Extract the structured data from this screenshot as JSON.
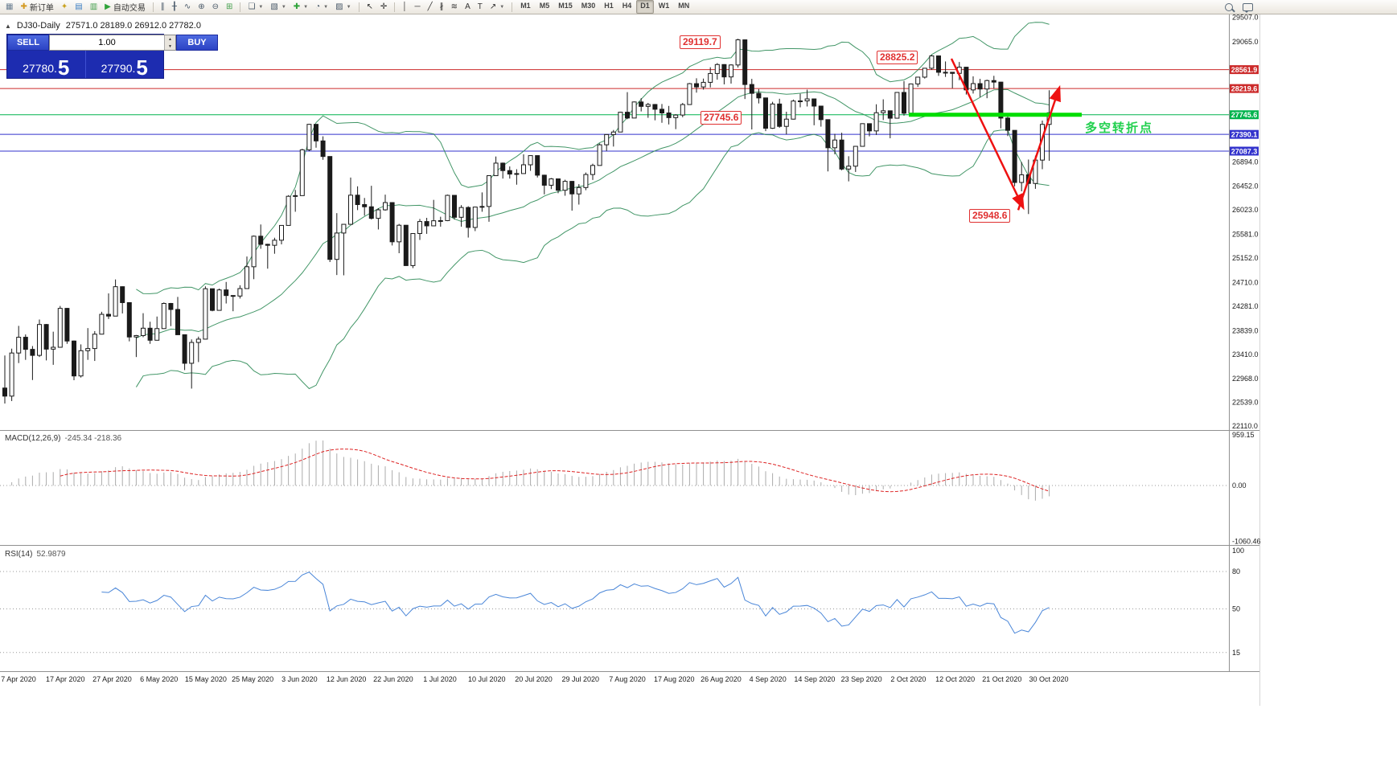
{
  "toolbar": {
    "items": [
      {
        "type": "btn",
        "name": "chart-window-icon",
        "glyph": "▦",
        "color": "#6b7f93"
      },
      {
        "type": "txtbtn",
        "name": "new-order-button",
        "icon": "new-order-icon",
        "glyph": "✚",
        "color": "#d49a22",
        "label": "新订单"
      },
      {
        "type": "btn",
        "name": "navigator-star-icon",
        "glyph": "✦",
        "color": "#caa21f"
      },
      {
        "type": "btn",
        "name": "market-watch-icon",
        "glyph": "▤",
        "color": "#3d7fc4"
      },
      {
        "type": "btn",
        "name": "data-window-icon",
        "glyph": "▥",
        "color": "#44a04e"
      },
      {
        "type": "txtbtn",
        "name": "autotrading-button",
        "icon": "autotrading-play-icon",
        "glyph": "▶",
        "color": "#2fa33a",
        "label": "自动交易"
      },
      {
        "type": "sep"
      },
      {
        "type": "btn",
        "name": "bar-chart-icon",
        "glyph": "∥",
        "color": "#4a5a6a"
      },
      {
        "type": "btn",
        "name": "candlestick-chart-icon",
        "glyph": "╂",
        "color": "#4a5a6a"
      },
      {
        "type": "btn",
        "name": "line-chart-icon",
        "glyph": "∿",
        "color": "#4a5a6a"
      },
      {
        "type": "btn",
        "name": "zoom-in-icon",
        "glyph": "⊕",
        "color": "#4a5a6a"
      },
      {
        "type": "btn",
        "name": "zoom-out-icon",
        "glyph": "⊖",
        "color": "#4a5a6a"
      },
      {
        "type": "btn",
        "name": "tile-windows-icon",
        "glyph": "⊞",
        "color": "#44a04e"
      },
      {
        "type": "sep"
      },
      {
        "type": "combo",
        "name": "new-chart-combo",
        "icon": "new-chart-icon",
        "glyph": "❏",
        "color": "#4a5a6a"
      },
      {
        "type": "combo",
        "name": "profiles-combo",
        "icon": "profiles-icon",
        "glyph": "▧",
        "color": "#4a5a6a"
      },
      {
        "type": "combo",
        "name": "indicators-combo",
        "icon": "add-indicator-icon",
        "glyph": "✚",
        "color": "#2fa33a"
      },
      {
        "type": "combo",
        "name": "periods-combo",
        "icon": "clock-icon",
        "glyph": "◔",
        "color": "#4a5a6a"
      },
      {
        "type": "combo",
        "name": "templates-combo",
        "icon": "template-icon",
        "glyph": "▨",
        "color": "#4a5a6a"
      },
      {
        "type": "sep"
      },
      {
        "type": "btn",
        "name": "cursor-icon",
        "glyph": "↖",
        "color": "#333333"
      },
      {
        "type": "btn",
        "name": "crosshair-icon",
        "glyph": "✛",
        "color": "#333333"
      },
      {
        "type": "sep"
      },
      {
        "type": "btn",
        "name": "vertical-line-icon",
        "glyph": "│",
        "color": "#333333"
      },
      {
        "type": "btn",
        "name": "horizontal-line-icon",
        "glyph": "─",
        "color": "#333333"
      },
      {
        "type": "btn",
        "name": "trendline-icon",
        "glyph": "╱",
        "color": "#333333"
      },
      {
        "type": "btn",
        "name": "equidistant-channel-icon",
        "glyph": "∦",
        "color": "#333333"
      },
      {
        "type": "btn",
        "name": "fibonacci-icon",
        "glyph": "≋",
        "color": "#333333"
      },
      {
        "type": "btn",
        "name": "text-icon",
        "glyph": "A",
        "color": "#333333"
      },
      {
        "type": "btn",
        "name": "text-label-icon",
        "glyph": "T",
        "color": "#333333"
      },
      {
        "type": "combo",
        "name": "arrows-combo",
        "icon": "arrow-shape-icon",
        "glyph": "↗",
        "color": "#333333"
      },
      {
        "type": "sep"
      }
    ],
    "timeframes": {
      "options": [
        "M1",
        "M5",
        "M15",
        "M30",
        "H1",
        "H4",
        "D1",
        "W1",
        "MN"
      ],
      "active": "D1"
    },
    "right_icons": [
      {
        "name": "search-icon"
      },
      {
        "name": "chat-icon"
      }
    ]
  },
  "chart": {
    "collapse_glyph": "▲",
    "title": {
      "symbol": "DJ30-Daily",
      "ohlc": "27571.0 28189.0 26912.0 27782.0"
    },
    "one_click": {
      "sell_label": "SELL",
      "buy_label": "BUY",
      "volume": "1.00",
      "sell_price_main": "27780.",
      "sell_price_pip": "5",
      "buy_price_main": "27790.",
      "buy_price_pip": "5"
    }
  },
  "indicator_labels": {
    "macd_name": "MACD(12,26,9)",
    "macd_values": "-245.34 -218.36",
    "rsi_name": "RSI(14)",
    "rsi_value": "52.9879"
  },
  "annotations": {
    "high_sep": "29119.7",
    "high_oct": "28825.2",
    "level_mid": "27745.6",
    "low_oct": "25948.6",
    "pivot_text": "多空转折点"
  },
  "chart_data": {
    "type": "candlestick",
    "symbol": "DJ30",
    "timeframe": "Daily",
    "y_range": [
      22040,
      29560
    ],
    "indicators": {
      "bollinger_period": 20,
      "bollinger_deviation": 2,
      "macd": [
        12,
        26,
        9
      ],
      "rsi_period": 14
    },
    "price_axis": {
      "regular": [
        "29507.0",
        "29065.0",
        "26894.0",
        "26452.0",
        "26023.0",
        "25581.0",
        "25152.0",
        "24710.0",
        "24281.0",
        "23839.0",
        "23410.0",
        "22968.0",
        "22539.0",
        "22110.0"
      ],
      "lines": [
        {
          "label": "28561.9",
          "price": 28561.9,
          "color": "#cc2a2a"
        },
        {
          "label": "28219.6",
          "price": 28219.6,
          "color": "#cc2a2a"
        },
        {
          "label": "27745.6",
          "price": 27745.6,
          "color": "#00b34d"
        },
        {
          "label": "27390.1",
          "price": 27390.1,
          "color": "#3333cc"
        },
        {
          "label": "27087.3",
          "price": 27087.3,
          "color": "#3333cc"
        }
      ]
    },
    "macd_axis": [
      {
        "label": "959.15",
        "value": 959.15
      },
      {
        "label": "0.00",
        "value": 0
      },
      {
        "label": "-1060.46",
        "value": -1060.46
      }
    ],
    "rsi_axis": [
      {
        "label": "100",
        "value": 100
      },
      {
        "label": "80",
        "value": 80
      },
      {
        "label": "50",
        "value": 50
      },
      {
        "label": "15",
        "value": 15
      }
    ],
    "rsi_levels": [
      80,
      50,
      15
    ],
    "x_labels": [
      "7 Apr 2020",
      "17 Apr 2020",
      "27 Apr 2020",
      "6 May 2020",
      "15 May 2020",
      "25 May 2020",
      "3 Jun 2020",
      "12 Jun 2020",
      "22 Jun 2020",
      "1 Jul 2020",
      "10 Jul 2020",
      "20 Jul 2020",
      "29 Jul 2020",
      "7 Aug 2020",
      "17 Aug 2020",
      "26 Aug 2020",
      "4 Sep 2020",
      "14 Sep 2020",
      "23 Sep 2020",
      "2 Oct 2020",
      "12 Oct 2020",
      "21 Oct 2020",
      "30 Oct 2020"
    ],
    "drawings": [
      {
        "type": "trend-arrow",
        "direction": "down",
        "color": "#ee1111",
        "from_price": 28760,
        "to_price": 26070
      },
      {
        "type": "trend-arrow",
        "direction": "up",
        "color": "#ee1111",
        "from_price": 26020,
        "to_price": 28230
      },
      {
        "type": "thick-segment",
        "price": 27745.6,
        "color": "#00dd00",
        "label": "多空转折点"
      }
    ],
    "ohlc": [
      [
        22800,
        23390,
        22520,
        22654
      ],
      [
        22654,
        23513,
        22565,
        23434
      ],
      [
        23434,
        23925,
        23252,
        23719
      ],
      [
        23719,
        23770,
        23310,
        23500
      ],
      [
        23500,
        23560,
        22945,
        23391
      ],
      [
        23391,
        24040,
        23361,
        23950
      ],
      [
        23950,
        23960,
        23300,
        23504
      ],
      [
        23504,
        23820,
        23220,
        23538
      ],
      [
        23538,
        24286,
        23530,
        24242
      ],
      [
        24242,
        24250,
        23600,
        23651
      ],
      [
        23651,
        23660,
        22942,
        23019
      ],
      [
        23019,
        23590,
        22990,
        23476
      ],
      [
        23476,
        23885,
        23310,
        23515
      ],
      [
        23515,
        23830,
        23290,
        23775
      ],
      [
        23775,
        24180,
        23770,
        24134
      ],
      [
        24134,
        24512,
        24050,
        24102
      ],
      [
        24102,
        24765,
        24100,
        24634
      ],
      [
        24634,
        24640,
        24150,
        24346
      ],
      [
        24346,
        24350,
        23645,
        23724
      ],
      [
        23724,
        23760,
        23361,
        23750
      ],
      [
        23750,
        24155,
        23720,
        23883
      ],
      [
        23883,
        24000,
        23600,
        23665
      ],
      [
        23665,
        24094,
        23660,
        23876
      ],
      [
        23876,
        24349,
        23870,
        24331
      ],
      [
        24331,
        24340,
        23920,
        24222
      ],
      [
        24222,
        24450,
        23760,
        23765
      ],
      [
        23765,
        23770,
        23125,
        23248
      ],
      [
        23248,
        23680,
        22790,
        23625
      ],
      [
        23625,
        23730,
        23270,
        23685
      ],
      [
        23685,
        24640,
        23680,
        24597
      ],
      [
        24597,
        24600,
        24190,
        24206
      ],
      [
        24206,
        24600,
        24200,
        24576
      ],
      [
        24576,
        24720,
        24330,
        24474
      ],
      [
        24474,
        24480,
        24190,
        24465
      ],
      [
        24465,
        24660,
        24420,
        24600
      ],
      [
        24600,
        25180,
        24595,
        24995
      ],
      [
        24995,
        25560,
        24770,
        25548
      ],
      [
        25548,
        25760,
        25320,
        25401
      ],
      [
        25401,
        25410,
        24960,
        25383
      ],
      [
        25383,
        25520,
        25230,
        25475
      ],
      [
        25475,
        25750,
        25400,
        25743
      ],
      [
        25743,
        26290,
        25740,
        26270
      ],
      [
        26270,
        26385,
        25990,
        26282
      ],
      [
        26282,
        27130,
        26280,
        27111
      ],
      [
        27111,
        27580,
        27090,
        27572
      ],
      [
        27572,
        27575,
        27150,
        27272
      ],
      [
        27272,
        27355,
        26930,
        26990
      ],
      [
        26990,
        26990,
        25080,
        25128
      ],
      [
        25128,
        25965,
        24845,
        25605
      ],
      [
        25605,
        25760,
        24840,
        25763
      ],
      [
        25763,
        26610,
        25760,
        26290
      ],
      [
        26290,
        26450,
        26020,
        26120
      ],
      [
        26120,
        26240,
        25920,
        26080
      ],
      [
        26080,
        26460,
        25850,
        25871
      ],
      [
        25871,
        26055,
        25670,
        26025
      ],
      [
        26025,
        26300,
        26010,
        26156
      ],
      [
        26156,
        26160,
        25380,
        25446
      ],
      [
        25446,
        25770,
        25240,
        25746
      ],
      [
        25746,
        25750,
        25010,
        25016
      ],
      [
        25016,
        25600,
        24970,
        25596
      ],
      [
        25596,
        25860,
        25480,
        25813
      ],
      [
        25813,
        25880,
        25590,
        25735
      ],
      [
        25735,
        26205,
        25730,
        25827
      ],
      [
        25827,
        25900,
        25720,
        25830
      ],
      [
        25830,
        26300,
        25820,
        26287
      ],
      [
        26287,
        26290,
        25850,
        25890
      ],
      [
        25890,
        26110,
        25720,
        26067
      ],
      [
        26067,
        26090,
        25523,
        25706
      ],
      [
        25706,
        26080,
        25640,
        26075
      ],
      [
        26075,
        26340,
        25990,
        26086
      ],
      [
        26086,
        26650,
        25810,
        26643
      ],
      [
        26643,
        26990,
        26640,
        26870
      ],
      [
        26870,
        26880,
        26590,
        26735
      ],
      [
        26735,
        26810,
        26590,
        26672
      ],
      [
        26672,
        26760,
        26480,
        26681
      ],
      [
        26681,
        27030,
        26680,
        26840
      ],
      [
        26840,
        27010,
        26730,
        27006
      ],
      [
        27006,
        27010,
        26610,
        26652
      ],
      [
        26652,
        26660,
        26305,
        26470
      ],
      [
        26470,
        26600,
        26400,
        26585
      ],
      [
        26585,
        26590,
        26325,
        26379
      ],
      [
        26379,
        26570,
        26280,
        26540
      ],
      [
        26540,
        26545,
        26010,
        26313
      ],
      [
        26313,
        26490,
        26120,
        26428
      ],
      [
        26428,
        26700,
        26380,
        26664
      ],
      [
        26664,
        26860,
        26565,
        26828
      ],
      [
        26828,
        27225,
        26825,
        27202
      ],
      [
        27202,
        27390,
        27090,
        27387
      ],
      [
        27387,
        27470,
        27170,
        27433
      ],
      [
        27433,
        27800,
        27430,
        27791
      ],
      [
        27791,
        28155,
        27665,
        27686
      ],
      [
        27686,
        27985,
        27685,
        27977
      ],
      [
        27977,
        28045,
        27805,
        27897
      ],
      [
        27897,
        27960,
        27690,
        27931
      ],
      [
        27931,
        27940,
        27645,
        27845
      ],
      [
        27845,
        27940,
        27600,
        27778
      ],
      [
        27778,
        27905,
        27570,
        27693
      ],
      [
        27693,
        27755,
        27485,
        27740
      ],
      [
        27740,
        27959,
        27700,
        27930
      ],
      [
        27930,
        28320,
        27925,
        28308
      ],
      [
        28308,
        28405,
        28145,
        28249
      ],
      [
        28249,
        28400,
        28200,
        28332
      ],
      [
        28332,
        28605,
        28240,
        28492
      ],
      [
        28492,
        28680,
        28380,
        28654
      ],
      [
        28654,
        28660,
        28295,
        28430
      ],
      [
        28430,
        28660,
        28310,
        28646
      ],
      [
        28646,
        29119.7,
        28600,
        29101
      ],
      [
        29101,
        29105,
        28030,
        28293
      ],
      [
        28293,
        28395,
        27480,
        28133
      ],
      [
        28133,
        28210,
        27950,
        28050
      ],
      [
        28050,
        28055,
        27450,
        27501
      ],
      [
        27501,
        27980,
        27490,
        27940
      ],
      [
        27940,
        28035,
        27510,
        27535
      ],
      [
        27535,
        27800,
        27390,
        27666
      ],
      [
        27666,
        28020,
        27660,
        27993
      ],
      [
        27993,
        28125,
        27880,
        27996
      ],
      [
        27996,
        28200,
        27895,
        28032
      ],
      [
        28032,
        28035,
        27555,
        27902
      ],
      [
        27902,
        27905,
        27530,
        27657
      ],
      [
        27657,
        27660,
        26720,
        27148
      ],
      [
        27148,
        27400,
        27030,
        27288
      ],
      [
        27288,
        27420,
        26740,
        26763
      ],
      [
        26763,
        26995,
        26540,
        26815
      ],
      [
        26815,
        27180,
        26710,
        27174
      ],
      [
        27174,
        27590,
        27170,
        27584
      ],
      [
        27584,
        27590,
        27355,
        27453
      ],
      [
        27453,
        27935,
        27380,
        27782
      ],
      [
        27782,
        28025,
        27650,
        27817
      ],
      [
        27817,
        27820,
        27320,
        27683
      ],
      [
        27683,
        28155,
        27680,
        28149
      ],
      [
        28149,
        28355,
        27730,
        27773
      ],
      [
        27773,
        28310,
        27770,
        28303
      ],
      [
        28303,
        28430,
        28250,
        28426
      ],
      [
        28426,
        28590,
        28400,
        28587
      ],
      [
        28587,
        28825.2,
        28560,
        28810
      ],
      [
        28810,
        28815,
        28450,
        28514
      ],
      [
        28514,
        28710,
        28430,
        28514
      ],
      [
        28514,
        28520,
        28225,
        28494
      ],
      [
        28494,
        28700,
        28370,
        28606
      ],
      [
        28606,
        28610,
        28110,
        28195
      ],
      [
        28195,
        28440,
        28130,
        28309
      ],
      [
        28309,
        28395,
        28065,
        28211
      ],
      [
        28211,
        28380,
        28045,
        28364
      ],
      [
        28364,
        28450,
        28220,
        28336
      ],
      [
        28336,
        28340,
        27500,
        27685
      ],
      [
        27685,
        27765,
        27360,
        27463
      ],
      [
        27463,
        27465,
        26450,
        26520
      ],
      [
        26520,
        26890,
        26360,
        26659
      ],
      [
        26659,
        26935,
        25948.6,
        26502
      ],
      [
        26502,
        27005,
        26405,
        26925
      ],
      [
        26925,
        27640,
        26760,
        27571
      ],
      [
        27571,
        28189,
        26912,
        27782
      ]
    ]
  }
}
